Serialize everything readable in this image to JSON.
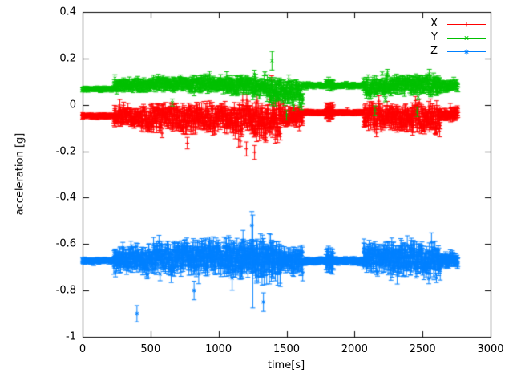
{
  "chart_data": {
    "type": "scatter",
    "style": "points-with-errorbars",
    "title": "",
    "xlabel": "time[s]",
    "ylabel": "acceleration [g]",
    "xlim": [
      0,
      3000
    ],
    "ylim": [
      -1,
      0.4
    ],
    "grid": false,
    "legend_position": "top-right-inside",
    "background_color": "#ffffff",
    "axis_color": "#000000",
    "x_ticks": [
      {
        "v": 0,
        "label": "0"
      },
      {
        "v": 500,
        "label": "500"
      },
      {
        "v": 1000,
        "label": "1000"
      },
      {
        "v": 1500,
        "label": "1500"
      },
      {
        "v": 2000,
        "label": "2000"
      },
      {
        "v": 2500,
        "label": "2500"
      },
      {
        "v": 3000,
        "label": "3000"
      }
    ],
    "y_ticks": [
      {
        "v": -1,
        "label": "-1"
      },
      {
        "v": -0.8,
        "label": "-0.8"
      },
      {
        "v": -0.6,
        "label": "-0.6"
      },
      {
        "v": -0.4,
        "label": "-0.4"
      },
      {
        "v": -0.2,
        "label": "-0.2"
      },
      {
        "v": 0,
        "label": "0"
      },
      {
        "v": 0.2,
        "label": "0.2"
      },
      {
        "v": 0.4,
        "label": "0.4"
      }
    ],
    "series": [
      {
        "name": "X",
        "color": "#ff0000",
        "marker": "plus",
        "baseline": -0.05,
        "segments": [
          {
            "t0": 0,
            "t1": 230,
            "m": -0.048,
            "s": 0.006,
            "e": 0.008
          },
          {
            "t0": 230,
            "t1": 430,
            "m": -0.05,
            "s": 0.028,
            "e": 0.02
          },
          {
            "t0": 430,
            "t1": 700,
            "m": -0.055,
            "s": 0.04,
            "e": 0.025
          },
          {
            "t0": 700,
            "t1": 1090,
            "m": -0.06,
            "s": 0.045,
            "e": 0.028
          },
          {
            "t0": 1090,
            "t1": 1260,
            "m": -0.065,
            "s": 0.05,
            "e": 0.03
          },
          {
            "t0": 1260,
            "t1": 1455,
            "m": -0.075,
            "s": 0.055,
            "e": 0.035
          },
          {
            "t0": 1455,
            "t1": 1620,
            "m": -0.05,
            "s": 0.03,
            "e": 0.02
          },
          {
            "t0": 1620,
            "t1": 1790,
            "m": -0.033,
            "s": 0.006,
            "e": 0.008
          },
          {
            "t0": 1790,
            "t1": 1845,
            "m": -0.03,
            "s": 0.012,
            "e": 0.03
          },
          {
            "t0": 1845,
            "t1": 2065,
            "m": -0.033,
            "s": 0.006,
            "e": 0.008
          },
          {
            "t0": 2065,
            "t1": 2230,
            "m": -0.05,
            "s": 0.038,
            "e": 0.025
          },
          {
            "t0": 2230,
            "t1": 2420,
            "m": -0.055,
            "s": 0.042,
            "e": 0.028
          },
          {
            "t0": 2420,
            "t1": 2630,
            "m": -0.06,
            "s": 0.045,
            "e": 0.03
          },
          {
            "t0": 2630,
            "t1": 2760,
            "m": -0.04,
            "s": 0.018,
            "e": 0.014
          }
        ],
        "spikes": [
          {
            "t": 1390,
            "v": 0.105,
            "e": 0.02
          },
          {
            "t": 1265,
            "v": -0.205,
            "e": 0.03
          },
          {
            "t": 1205,
            "v": -0.19,
            "e": 0.03
          },
          {
            "t": 770,
            "v": -0.165,
            "e": 0.025
          }
        ]
      },
      {
        "name": "Y",
        "color": "#00c000",
        "marker": "cross",
        "baseline": 0.08,
        "segments": [
          {
            "t0": 0,
            "t1": 230,
            "m": 0.068,
            "s": 0.005,
            "e": 0.008
          },
          {
            "t0": 230,
            "t1": 520,
            "m": 0.085,
            "s": 0.018,
            "e": 0.014
          },
          {
            "t0": 520,
            "t1": 1090,
            "m": 0.09,
            "s": 0.022,
            "e": 0.016
          },
          {
            "t0": 1090,
            "t1": 1380,
            "m": 0.082,
            "s": 0.028,
            "e": 0.02
          },
          {
            "t0": 1380,
            "t1": 1460,
            "m": 0.06,
            "s": 0.04,
            "e": 0.025
          },
          {
            "t0": 1460,
            "t1": 1620,
            "m": 0.055,
            "s": 0.035,
            "e": 0.022
          },
          {
            "t0": 1620,
            "t1": 1790,
            "m": 0.083,
            "s": 0.006,
            "e": 0.008
          },
          {
            "t0": 1790,
            "t1": 1845,
            "m": 0.09,
            "s": 0.01,
            "e": 0.018
          },
          {
            "t0": 1845,
            "t1": 2065,
            "m": 0.083,
            "s": 0.006,
            "e": 0.008
          },
          {
            "t0": 2065,
            "t1": 2230,
            "m": 0.08,
            "s": 0.03,
            "e": 0.02
          },
          {
            "t0": 2230,
            "t1": 2420,
            "m": 0.09,
            "s": 0.025,
            "e": 0.018
          },
          {
            "t0": 2420,
            "t1": 2630,
            "m": 0.085,
            "s": 0.03,
            "e": 0.02
          },
          {
            "t0": 2630,
            "t1": 2760,
            "m": 0.08,
            "s": 0.016,
            "e": 0.013
          }
        ],
        "spikes": [
          {
            "t": 1393,
            "v": 0.19,
            "e": 0.04
          },
          {
            "t": 1500,
            "v": -0.045,
            "e": 0.02
          },
          {
            "t": 2150,
            "v": -0.025,
            "e": 0.02
          },
          {
            "t": 2460,
            "v": -0.03,
            "e": 0.02
          },
          {
            "t": 660,
            "v": 0.01,
            "e": 0.015
          }
        ]
      },
      {
        "name": "Z",
        "color": "#0080ff",
        "marker": "asterisk",
        "baseline": -0.67,
        "segments": [
          {
            "t0": 0,
            "t1": 230,
            "m": -0.672,
            "s": 0.005,
            "e": 0.01
          },
          {
            "t0": 230,
            "t1": 430,
            "m": -0.67,
            "s": 0.032,
            "e": 0.03
          },
          {
            "t0": 430,
            "t1": 700,
            "m": -0.665,
            "s": 0.04,
            "e": 0.035
          },
          {
            "t0": 700,
            "t1": 1090,
            "m": -0.655,
            "s": 0.045,
            "e": 0.04
          },
          {
            "t0": 1090,
            "t1": 1260,
            "m": -0.665,
            "s": 0.05,
            "e": 0.045
          },
          {
            "t0": 1260,
            "t1": 1455,
            "m": -0.67,
            "s": 0.055,
            "e": 0.05
          },
          {
            "t0": 1455,
            "t1": 1620,
            "m": -0.67,
            "s": 0.038,
            "e": 0.03
          },
          {
            "t0": 1620,
            "t1": 1790,
            "m": -0.673,
            "s": 0.006,
            "e": 0.012
          },
          {
            "t0": 1790,
            "t1": 1845,
            "m": -0.67,
            "s": 0.015,
            "e": 0.05
          },
          {
            "t0": 1845,
            "t1": 2065,
            "m": -0.673,
            "s": 0.006,
            "e": 0.012
          },
          {
            "t0": 2065,
            "t1": 2230,
            "m": -0.655,
            "s": 0.038,
            "e": 0.035
          },
          {
            "t0": 2230,
            "t1": 2420,
            "m": -0.66,
            "s": 0.042,
            "e": 0.038
          },
          {
            "t0": 2420,
            "t1": 2630,
            "m": -0.665,
            "s": 0.045,
            "e": 0.04
          },
          {
            "t0": 2630,
            "t1": 2760,
            "m": -0.67,
            "s": 0.018,
            "e": 0.02
          }
        ],
        "spikes": [
          {
            "t": 400,
            "v": -0.9,
            "e": 0.035
          },
          {
            "t": 1245,
            "v": -0.52,
            "e": 0.06
          },
          {
            "t": 1252,
            "v": -0.675,
            "e": 0.2
          },
          {
            "t": 1330,
            "v": -0.85,
            "e": 0.04
          },
          {
            "t": 820,
            "v": -0.8,
            "e": 0.04
          }
        ]
      }
    ]
  }
}
